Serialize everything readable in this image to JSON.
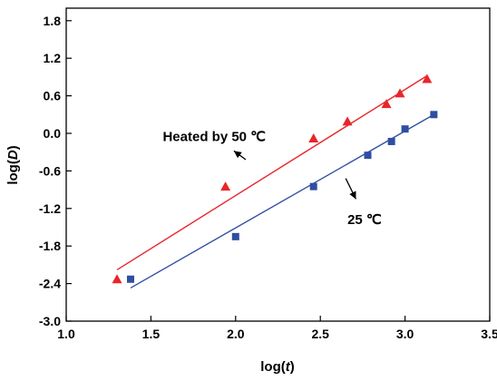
{
  "chart_data": {
    "type": "scatter",
    "xlabel_pre": "log(",
    "xlabel_var": "t",
    "xlabel_post": ")",
    "ylabel_pre": "log(",
    "ylabel_var": "D",
    "ylabel_post": ")",
    "xlim": [
      1.0,
      3.5
    ],
    "ylim": [
      -3.0,
      2.0
    ],
    "x_ticks": [
      1.0,
      1.5,
      2.0,
      2.5,
      3.0,
      3.5
    ],
    "x_tick_labels": [
      "1.0",
      "1.5",
      "2.0",
      "2.5",
      "3.0",
      "3.5"
    ],
    "y_ticks": [
      -3.0,
      -2.4,
      -1.8,
      -1.2,
      -0.6,
      0.0,
      0.6,
      1.2,
      1.8
    ],
    "y_tick_labels": [
      "-3.0",
      "-2.4",
      "-1.8",
      "-1.2",
      "-0.6",
      "0.0",
      "0.6",
      "1.2",
      "1.8"
    ],
    "grid": false,
    "series": [
      {
        "color": "#e8262a",
        "marker": "triangle",
        "x": [
          1.3,
          1.94,
          2.46,
          2.66,
          2.89,
          2.97,
          3.13
        ],
        "y": [
          -2.33,
          -0.85,
          -0.08,
          0.19,
          0.47,
          0.64,
          0.87
        ],
        "fit": {
          "x": [
            1.3,
            3.13
          ],
          "y": [
            -2.18,
            0.92
          ]
        }
      },
      {
        "color": "#2f4ea3",
        "marker": "square",
        "x": [
          1.38,
          2.0,
          2.46,
          2.78,
          2.92,
          3.0,
          3.17
        ],
        "y": [
          -2.33,
          -1.65,
          -0.85,
          -0.35,
          -0.13,
          0.07,
          0.3
        ],
        "fit": {
          "x": [
            1.38,
            3.17
          ],
          "y": [
            -2.47,
            0.3
          ]
        }
      }
    ],
    "annotations": [
      {
        "text": "Heated by 50 ℃",
        "anchor": [
          1.57,
          -0.05
        ],
        "arrow_from": [
          2.06,
          -0.42
        ],
        "arrow_to": [
          1.99,
          -0.28
        ]
      },
      {
        "text": "25 ℃",
        "anchor": [
          2.66,
          -1.38
        ],
        "arrow_from": [
          2.65,
          -0.72
        ],
        "arrow_to": [
          2.71,
          -1.05
        ]
      }
    ]
  }
}
